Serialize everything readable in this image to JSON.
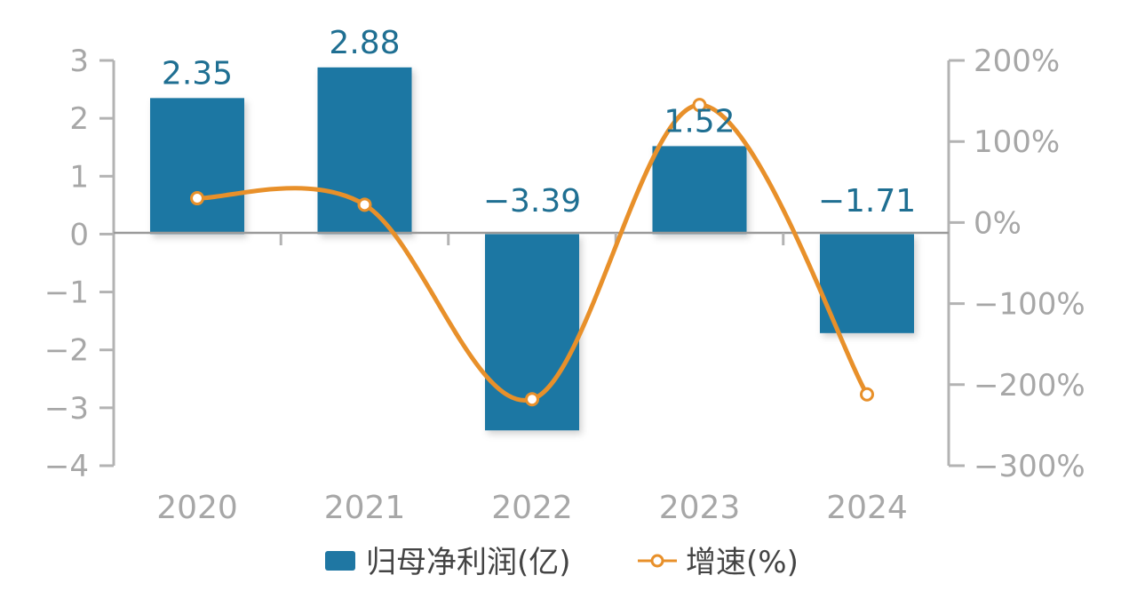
{
  "chart_data": {
    "type": "bar",
    "categories": [
      "2020",
      "2021",
      "2022",
      "2023",
      "2024"
    ],
    "series": [
      {
        "name": "归母净利润(亿)",
        "kind": "bar",
        "axis": "left",
        "color": "#1f77a3",
        "values": [
          2.35,
          2.88,
          -3.39,
          1.52,
          -1.71
        ],
        "labels": [
          "2.35",
          "2.88",
          "−3.39",
          "1.52",
          "−1.71"
        ]
      },
      {
        "name": "增速(%)",
        "kind": "line",
        "axis": "right",
        "color": "#e8902a",
        "values": [
          30,
          22,
          -218,
          145,
          -212
        ]
      }
    ],
    "y_left": {
      "min": -4,
      "max": 3,
      "ticks": [
        "−4",
        "−3",
        "−2",
        "−1",
        "0",
        "1",
        "2",
        "3"
      ]
    },
    "y_right": {
      "min": -300,
      "max": 200,
      "ticks": [
        "−300%",
        "−200%",
        "−100%",
        "0%",
        "100%",
        "200%"
      ]
    },
    "legend_position": "bottom",
    "grid": false
  }
}
